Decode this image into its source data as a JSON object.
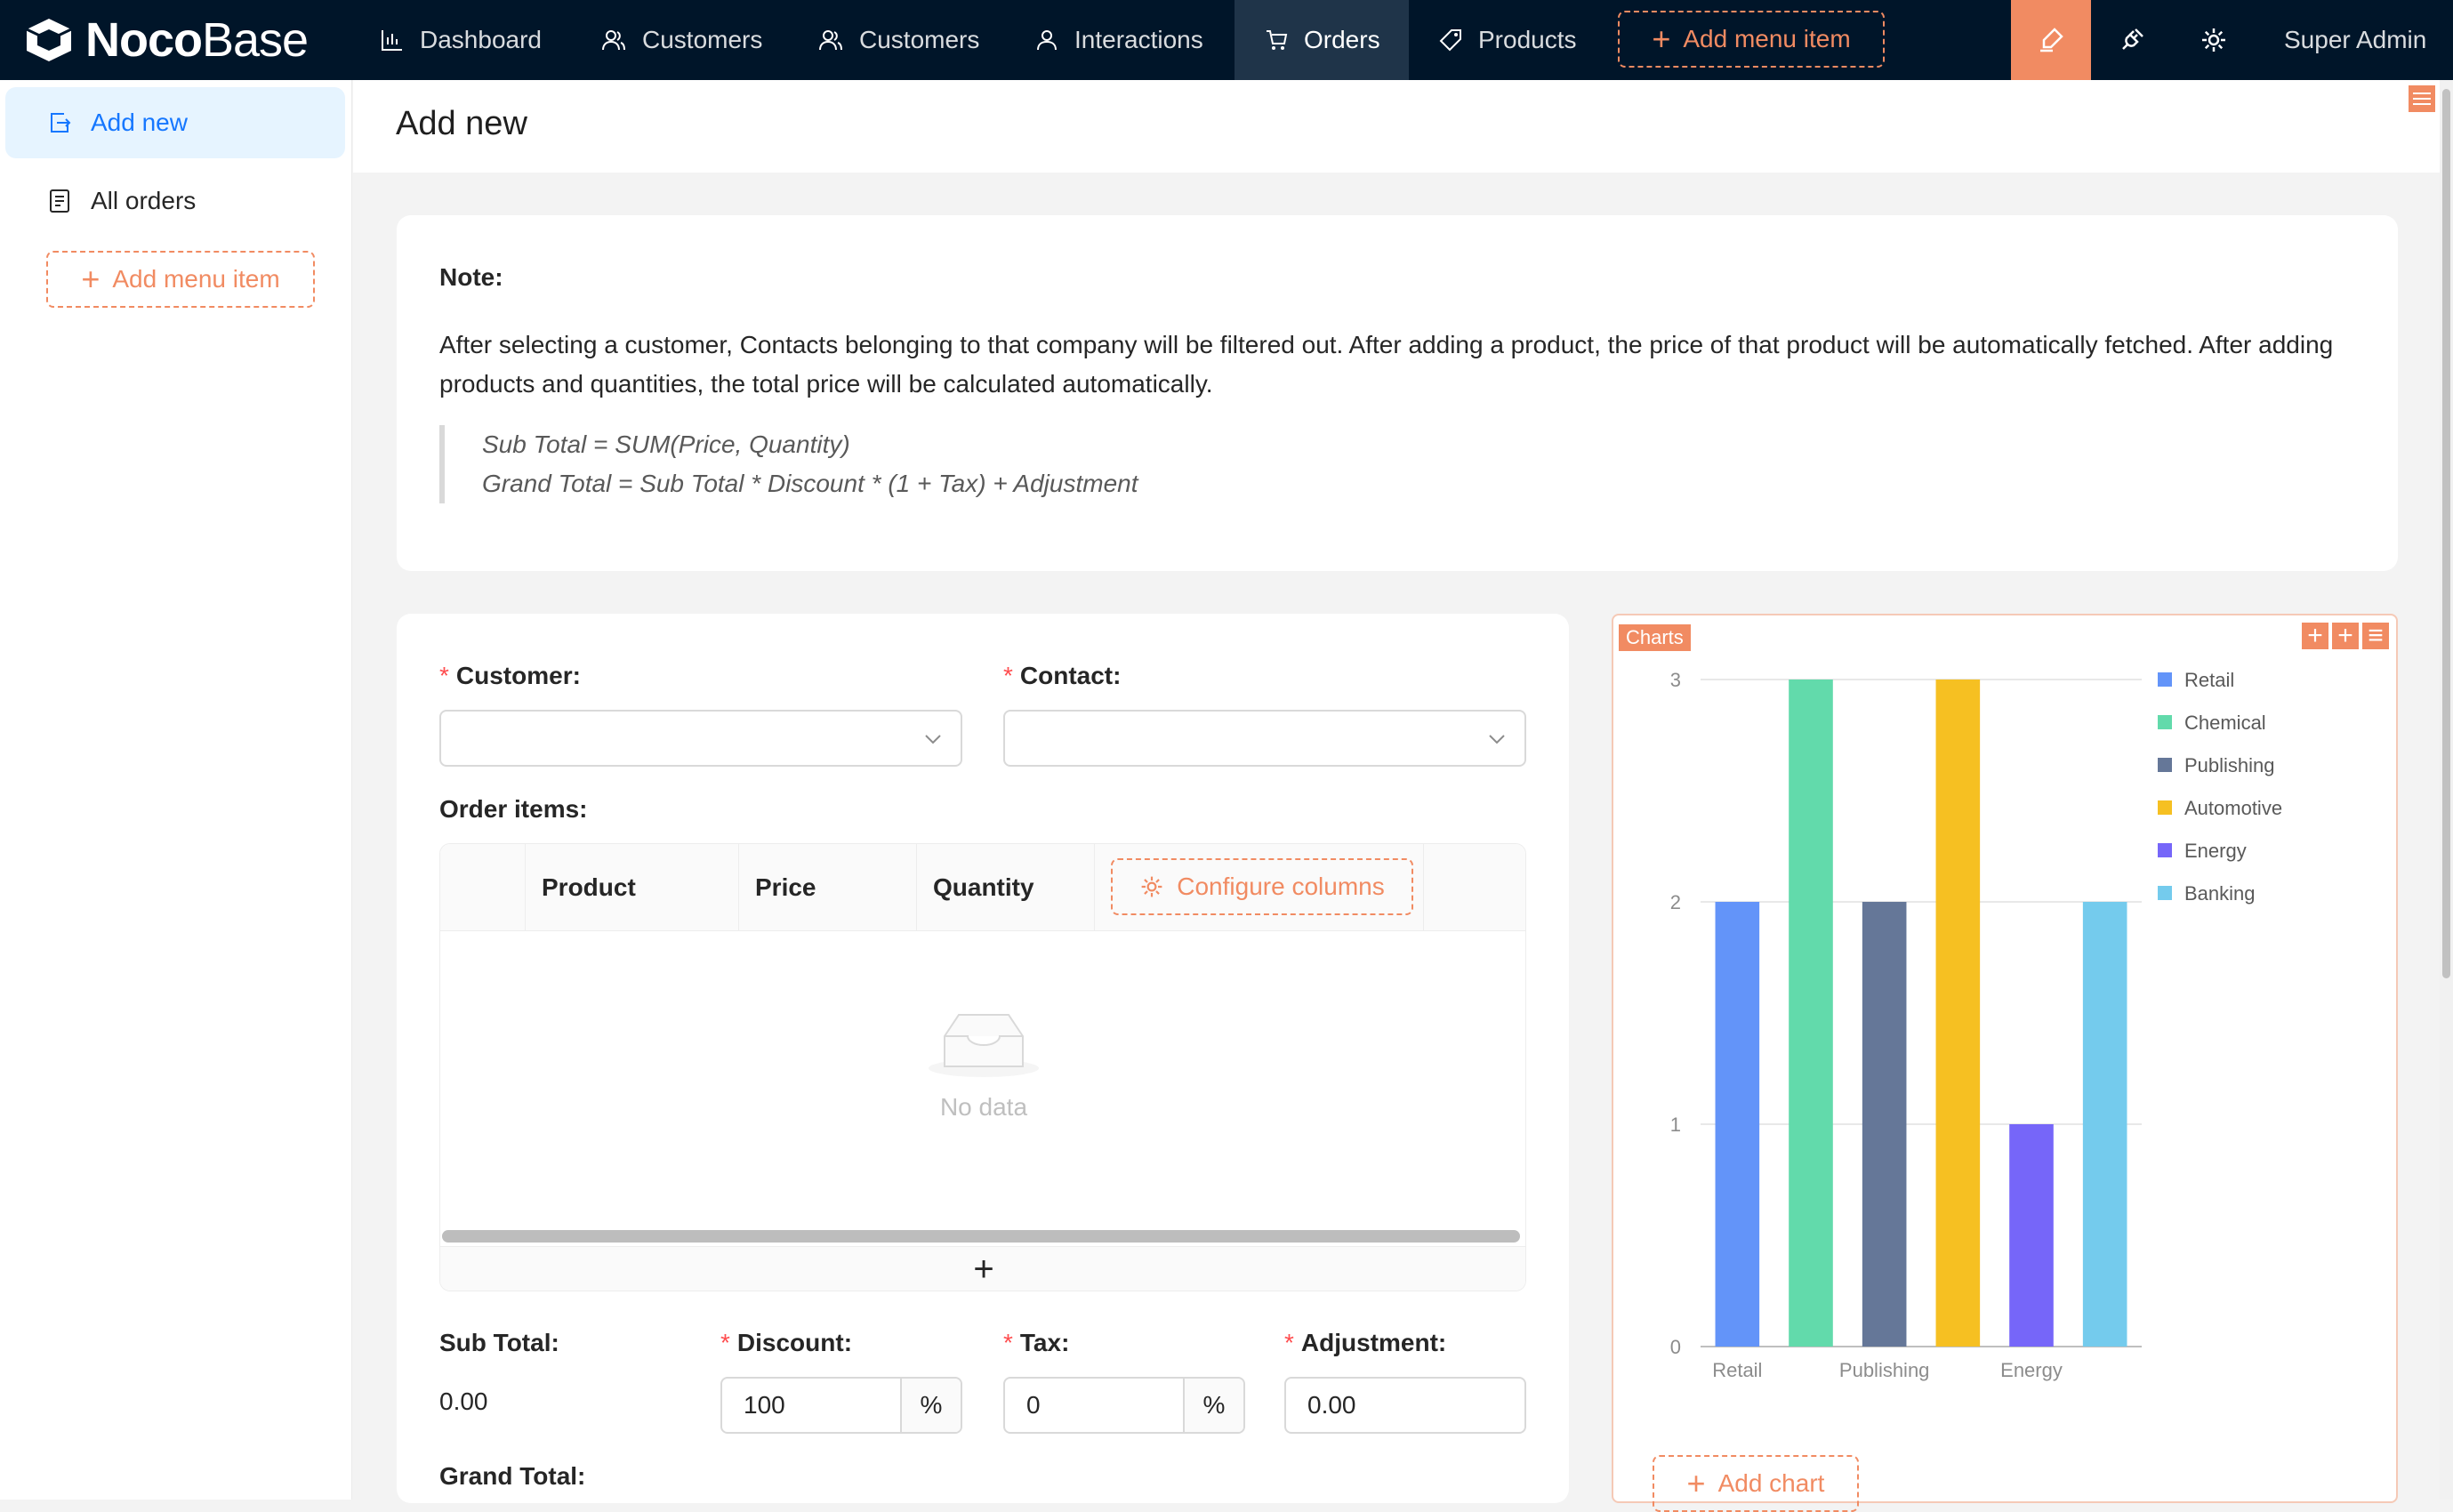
{
  "app": {
    "logo_bold": "Noco",
    "logo_light": "Base",
    "user": "Super Admin"
  },
  "nav": {
    "items": [
      {
        "label": "Dashboard",
        "icon": "bar-chart-icon"
      },
      {
        "label": "Customers",
        "icon": "team-icon"
      },
      {
        "label": "Customers",
        "icon": "team-icon"
      },
      {
        "label": "Interactions",
        "icon": "user-icon"
      },
      {
        "label": "Orders",
        "icon": "cart-icon",
        "active": true
      },
      {
        "label": "Products",
        "icon": "tag-icon"
      }
    ],
    "add_menu_label": "Add menu item"
  },
  "sidebar": {
    "items": [
      {
        "label": "Add new",
        "icon": "form-icon",
        "active": true
      },
      {
        "label": "All orders",
        "icon": "list-icon"
      }
    ],
    "add_menu_label": "Add menu item"
  },
  "page": {
    "title": "Add new"
  },
  "note": {
    "title": "Note:",
    "text": "After selecting a customer, Contacts belonging to that company will be filtered out. After adding a product, the price of that product will be automatically fetched. After adding products and quantities, the total price will be calculated automatically.",
    "formula_1": "Sub Total = SUM(Price, Quantity)",
    "formula_2": "Grand Total = Sub Total * Discount * (1 + Tax) + Adjustment"
  },
  "form": {
    "customer_label": "Customer",
    "contact_label": "Contact",
    "order_items_label": "Order items",
    "columns": [
      "Product",
      "Price",
      "Quantity"
    ],
    "configure_columns_label": "Configure columns",
    "empty_text": "No data",
    "add_row_symbol": "+",
    "sub_total_label": "Sub Total",
    "sub_total_value": "0.00",
    "discount_label": "Discount",
    "discount_value": "100",
    "discount_unit": "%",
    "tax_label": "Tax",
    "tax_value": "0",
    "tax_unit": "%",
    "adjustment_label": "Adjustment",
    "adjustment_value": "0.00",
    "grand_total_label": "Grand Total"
  },
  "chart_block": {
    "tag": "Charts",
    "add_chart_label": "Add chart"
  },
  "chart_data": {
    "type": "bar",
    "categories": [
      "Retail",
      "Chemical",
      "Publishing",
      "Automotive",
      "Energy",
      "Banking"
    ],
    "values": [
      2,
      3,
      2,
      3,
      1,
      2
    ],
    "colors": [
      "#6394f9",
      "#62daab",
      "#657798",
      "#f6c022",
      "#7666f9",
      "#74cbed"
    ],
    "x_tick_labels": [
      "Retail",
      "Publishing",
      "Energy"
    ],
    "y_ticks": [
      0,
      1,
      2,
      3
    ],
    "ylim": [
      0,
      3
    ],
    "legend": [
      "Retail",
      "Chemical",
      "Publishing",
      "Automotive",
      "Energy",
      "Banking"
    ],
    "legend_position": "right",
    "grid": true
  },
  "colors": {
    "accent": "#f18b62",
    "nav_bg": "#001529",
    "primary": "#1677ff"
  }
}
